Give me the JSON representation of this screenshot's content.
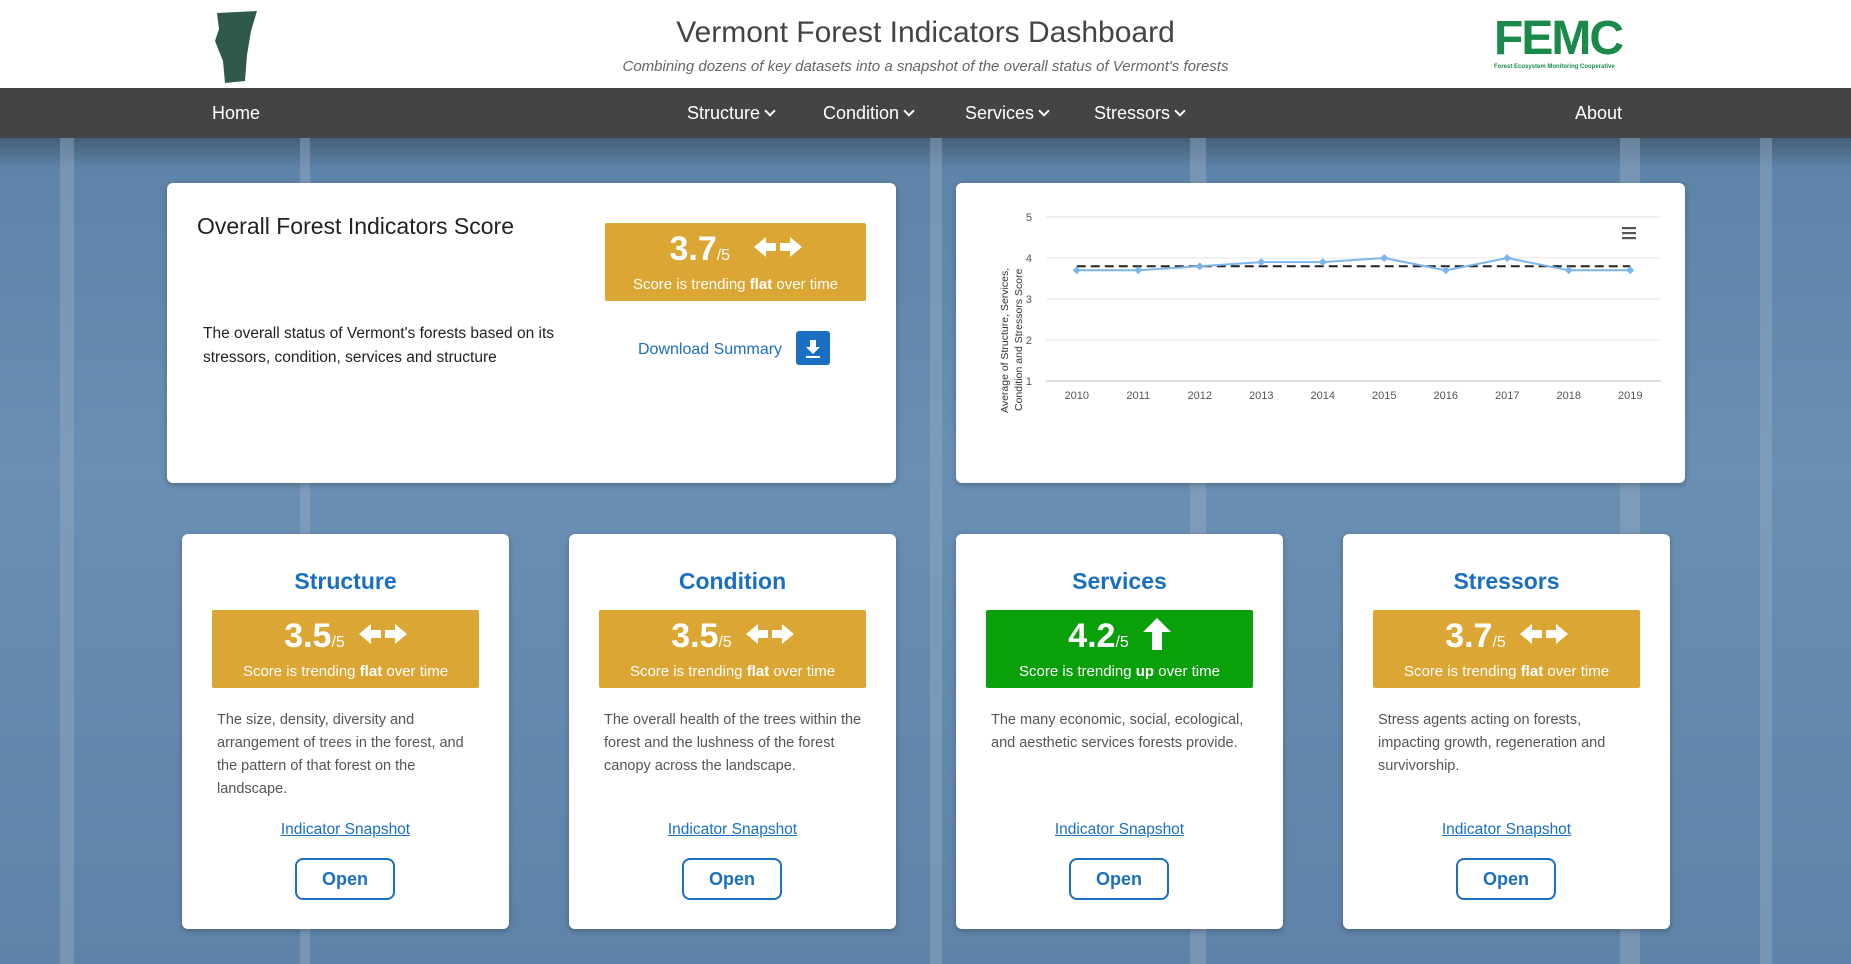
{
  "header": {
    "title": "Vermont Forest Indicators Dashboard",
    "subtitle": "Combining dozens of key datasets into a snapshot of the overall status of Vermont's forests",
    "logo_text": "FEMC",
    "logo_subtext": "Forest Ecosystem Monitoring Cooperative"
  },
  "nav": {
    "home": "Home",
    "structure": "Structure",
    "condition": "Condition",
    "services": "Services",
    "stressors": "Stressors",
    "about": "About"
  },
  "overall": {
    "title": "Overall Forest Indicators Score",
    "score": "3.7",
    "denominator": "/5",
    "trend_prefix": "Score is trending ",
    "trend_word": "flat",
    "trend_suffix": " over time",
    "description": "The overall status of Vermont's forests based on its stressors, condition, services and structure",
    "download_label": "Download Summary",
    "color": "#dba633"
  },
  "chart_data": {
    "type": "line",
    "ylabel_line1": "Average of Structure, Services,",
    "ylabel_line2": "Condition and Stressors Score",
    "x": [
      2010,
      2011,
      2012,
      2013,
      2014,
      2015,
      2016,
      2017,
      2018,
      2019
    ],
    "series": [
      {
        "values": [
          3.7,
          3.7,
          3.8,
          3.9,
          3.9,
          4.0,
          3.7,
          4.0,
          3.7,
          3.7
        ],
        "color": "#7cb5ec"
      }
    ],
    "trendline": {
      "values": [
        3.8,
        3.8,
        3.8,
        3.8,
        3.8,
        3.8,
        3.8,
        3.8,
        3.8,
        3.8
      ],
      "style": "dashed",
      "color": "#222222"
    },
    "ylim": [
      1,
      5
    ],
    "yticks": [
      1,
      2,
      3,
      4,
      5
    ],
    "grid": true,
    "menu_icon": "hamburger-icon"
  },
  "categories": [
    {
      "title": "Structure",
      "score": "3.5",
      "denominator": "/5",
      "trend_prefix": "Score is trending ",
      "trend_word": "flat",
      "trend_suffix": " over time",
      "icon": "flat-arrows-icon",
      "color": "#dba633",
      "description": "The size, density, diversity and arrangement of trees in the forest, and the pattern of that forest on the landscape.",
      "snapshot": "Indicator Snapshot",
      "open": "Open"
    },
    {
      "title": "Condition",
      "score": "3.5",
      "denominator": "/5",
      "trend_prefix": "Score is trending ",
      "trend_word": "flat",
      "trend_suffix": " over time",
      "icon": "flat-arrows-icon",
      "color": "#dba633",
      "description": "The overall health of the trees within the forest and the lushness of the forest canopy across the landscape.",
      "snapshot": "Indicator Snapshot",
      "open": "Open"
    },
    {
      "title": "Services",
      "score": "4.2",
      "denominator": "/5",
      "trend_prefix": "Score is trending ",
      "trend_word": "up",
      "trend_suffix": " over time",
      "icon": "up-arrow-icon",
      "color": "#0aa00a",
      "description": "The many economic, social, ecological, and aesthetic services forests provide.",
      "snapshot": "Indicator Snapshot",
      "open": "Open"
    },
    {
      "title": "Stressors",
      "score": "3.7",
      "denominator": "/5",
      "trend_prefix": "Score is trending ",
      "trend_word": "flat",
      "trend_suffix": " over time",
      "icon": "flat-arrows-icon",
      "color": "#dba633",
      "description": "Stress agents acting on forests, impacting growth, regeneration and survivorship.",
      "snapshot": "Indicator Snapshot",
      "open": "Open"
    }
  ]
}
